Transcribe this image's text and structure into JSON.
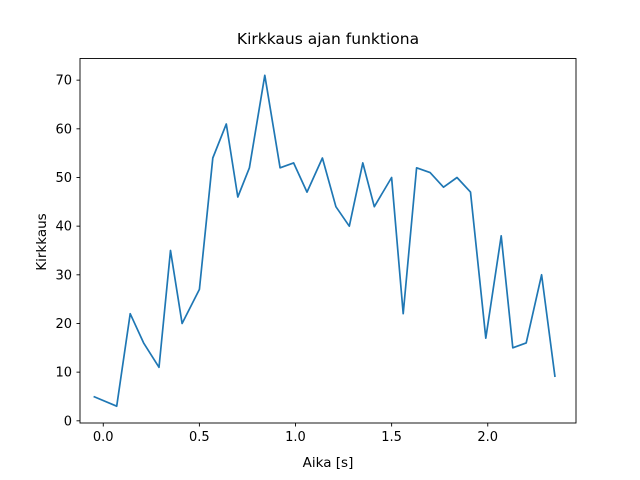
{
  "figure": {
    "background_color": "#ffffff"
  },
  "chart_data": {
    "type": "line",
    "title": "Kirkkaus ajan funktiona",
    "xlabel": "Aika [s]",
    "ylabel": "Kirkkaus",
    "line_color": "#1f77b4",
    "grid": false,
    "legend": "none",
    "xlim": [
      -0.121,
      2.459
    ],
    "ylim": [
      -0.45,
      74.45
    ],
    "xticks": {
      "values": [
        0.0,
        0.5,
        1.0,
        1.5,
        2.0
      ],
      "labels": [
        "0.0",
        "0.5",
        "1.0",
        "1.5",
        "2.0"
      ]
    },
    "yticks": {
      "values": [
        0,
        10,
        20,
        30,
        40,
        50,
        60,
        70
      ],
      "labels": [
        "0",
        "10",
        "20",
        "30",
        "40",
        "50",
        "60",
        "70"
      ]
    },
    "x": [
      -0.05,
      0.07,
      0.14,
      0.21,
      0.29,
      0.35,
      0.41,
      0.5,
      0.57,
      0.64,
      0.7,
      0.76,
      0.84,
      0.92,
      0.99,
      1.06,
      1.14,
      1.21,
      1.28,
      1.35,
      1.41,
      1.5,
      1.56,
      1.63,
      1.7,
      1.77,
      1.84,
      1.91,
      1.99,
      2.07,
      2.13,
      2.2,
      2.28,
      2.35
    ],
    "y": [
      5,
      3,
      22,
      16,
      11,
      35,
      20,
      27,
      54,
      61,
      46,
      52,
      71,
      52,
      53,
      47,
      54,
      44,
      40,
      53,
      44,
      50,
      22,
      52,
      51,
      48,
      50,
      47,
      17,
      38,
      15,
      16,
      30,
      9
    ]
  }
}
